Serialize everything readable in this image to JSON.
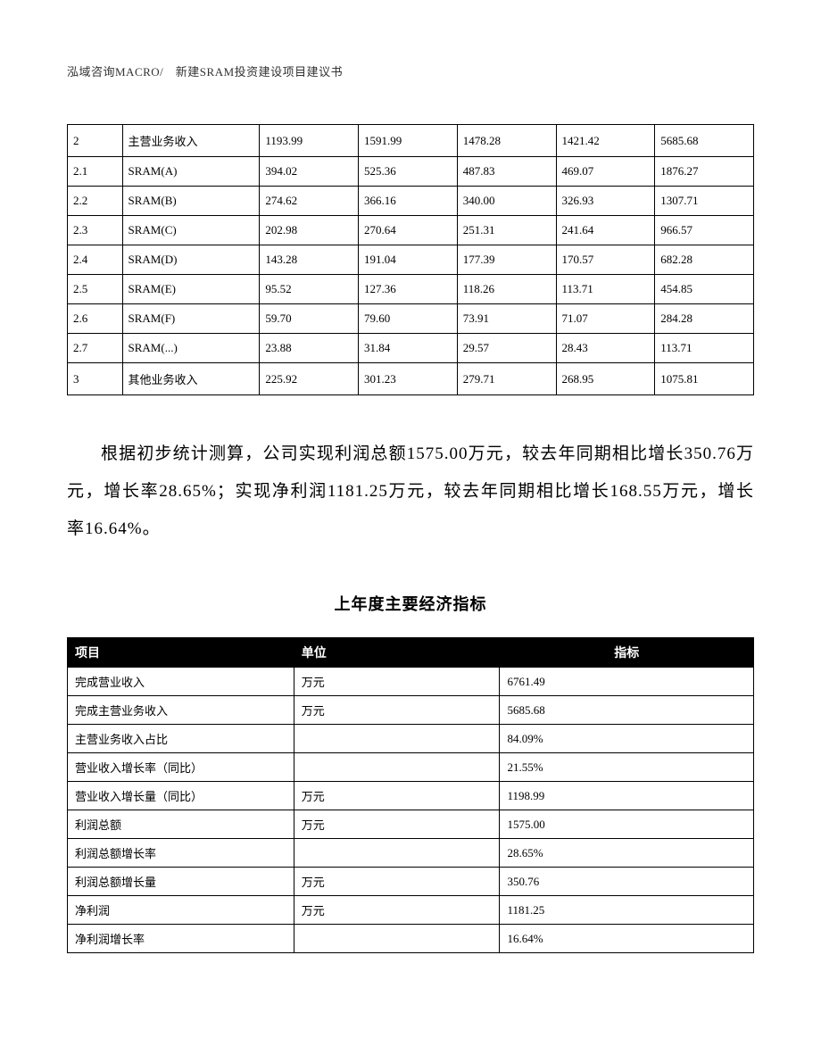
{
  "header": "泓域咨询MACRO/　新建SRAM投资建设项目建议书",
  "table1": {
    "rows": [
      {
        "idx": "2",
        "name": "主营业务收入",
        "c1": "1193.99",
        "c2": "1591.99",
        "c3": "1478.28",
        "c4": "1421.42",
        "c5": "5685.68"
      },
      {
        "idx": "2.1",
        "name": "SRAM(A)",
        "c1": "394.02",
        "c2": "525.36",
        "c3": "487.83",
        "c4": "469.07",
        "c5": "1876.27"
      },
      {
        "idx": "2.2",
        "name": "SRAM(B)",
        "c1": "274.62",
        "c2": "366.16",
        "c3": "340.00",
        "c4": "326.93",
        "c5": "1307.71"
      },
      {
        "idx": "2.3",
        "name": "SRAM(C)",
        "c1": "202.98",
        "c2": "270.64",
        "c3": "251.31",
        "c4": "241.64",
        "c5": "966.57"
      },
      {
        "idx": "2.4",
        "name": "SRAM(D)",
        "c1": "143.28",
        "c2": "191.04",
        "c3": "177.39",
        "c4": "170.57",
        "c5": "682.28"
      },
      {
        "idx": "2.5",
        "name": "SRAM(E)",
        "c1": "95.52",
        "c2": "127.36",
        "c3": "118.26",
        "c4": "113.71",
        "c5": "454.85"
      },
      {
        "idx": "2.6",
        "name": "SRAM(F)",
        "c1": "59.70",
        "c2": "79.60",
        "c3": "73.91",
        "c4": "71.07",
        "c5": "284.28"
      },
      {
        "idx": "2.7",
        "name": "SRAM(...)",
        "c1": "23.88",
        "c2": "31.84",
        "c3": "29.57",
        "c4": "28.43",
        "c5": "113.71"
      },
      {
        "idx": "3",
        "name": "其他业务收入",
        "c1": "225.92",
        "c2": "301.23",
        "c3": "279.71",
        "c4": "268.95",
        "c5": "1075.81"
      }
    ],
    "col_widths": [
      "8%",
      "20%",
      "14.4%",
      "14.4%",
      "14.4%",
      "14.4%",
      "14.4%"
    ],
    "border_color": "#000000",
    "font_size": 13
  },
  "paragraph": "根据初步统计测算，公司实现利润总额1575.00万元，较去年同期相比增长350.76万元，增长率28.65%；实现净利润1181.25万元，较去年同期相比增长168.55万元，增长率16.64%。",
  "table2": {
    "title": "上年度主要经济指标",
    "headers": {
      "name": "项目",
      "unit": "单位",
      "value": "指标"
    },
    "header_bg": "#000000",
    "header_fg": "#ffffff",
    "rows": [
      {
        "name": "完成营业收入",
        "unit": "万元",
        "value": "6761.49"
      },
      {
        "name": "完成主营业务收入",
        "unit": "万元",
        "value": "5685.68"
      },
      {
        "name": "主营业务收入占比",
        "unit": "",
        "value": "84.09%"
      },
      {
        "name": "营业收入增长率（同比）",
        "unit": "",
        "value": "21.55%"
      },
      {
        "name": "营业收入增长量（同比）",
        "unit": "万元",
        "value": "1198.99"
      },
      {
        "name": "利润总额",
        "unit": "万元",
        "value": "1575.00"
      },
      {
        "name": "利润总额增长率",
        "unit": "",
        "value": "28.65%"
      },
      {
        "name": "利润总额增长量",
        "unit": "万元",
        "value": "350.76"
      },
      {
        "name": "净利润",
        "unit": "万元",
        "value": "1181.25"
      },
      {
        "name": "净利润增长率",
        "unit": "",
        "value": "16.64%"
      }
    ],
    "col_widths": [
      "33%",
      "30%",
      "37%"
    ],
    "font_size": 13
  },
  "page_bg": "#ffffff",
  "text_color": "#000000"
}
